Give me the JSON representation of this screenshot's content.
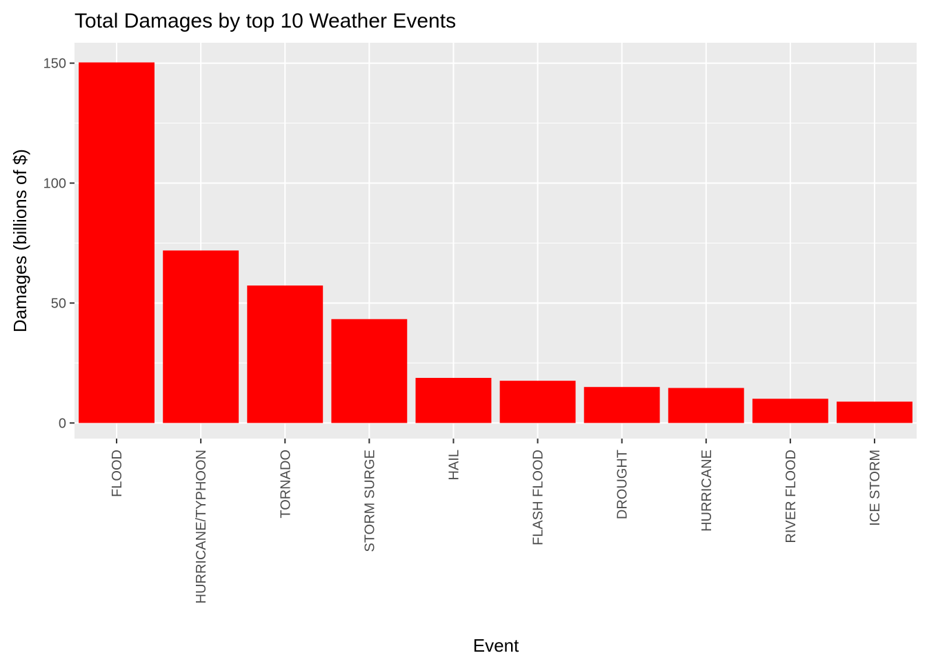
{
  "chart_data": {
    "type": "bar",
    "title": "Total Damages by top 10 Weather Events",
    "xlabel": "Event",
    "ylabel": "Damages (billions of $)",
    "categories": [
      "FLOOD",
      "HURRICANE/TYPHOON",
      "TORNADO",
      "STORM SURGE",
      "HAIL",
      "FLASH FLOOD",
      "DROUGHT",
      "HURRICANE",
      "RIVER FLOOD",
      "ICE STORM"
    ],
    "values": [
      150.3,
      71.9,
      57.3,
      43.3,
      18.8,
      17.6,
      15.0,
      14.6,
      10.1,
      8.9
    ],
    "ylim": [
      -6.5,
      158.5
    ],
    "yticks": [
      0,
      50,
      100,
      150
    ],
    "grid": true,
    "legend": "none",
    "colors": {
      "bar": "#ff0000",
      "panel": "#ebebeb",
      "grid": "#ffffff",
      "tick_text": "#4d4d4d"
    }
  }
}
